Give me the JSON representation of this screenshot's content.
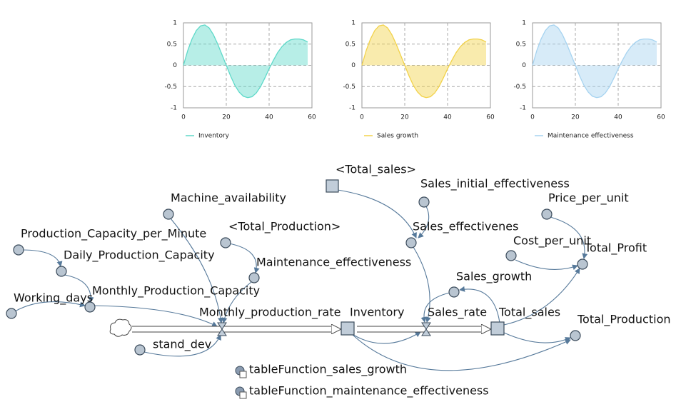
{
  "chart_data": [
    {
      "type": "area",
      "x": [
        0,
        2,
        4,
        6,
        8,
        10,
        12,
        14,
        16,
        18,
        20,
        22,
        24,
        26,
        28,
        30,
        32,
        34,
        36,
        38,
        40,
        42,
        44,
        46,
        48,
        50,
        52,
        54,
        56,
        58
      ],
      "series": [
        {
          "name": "Inventory",
          "color": "#5fd9c9",
          "values": [
            0,
            0.35,
            0.62,
            0.82,
            0.93,
            0.95,
            0.88,
            0.72,
            0.5,
            0.25,
            0,
            -0.25,
            -0.47,
            -0.63,
            -0.73,
            -0.76,
            -0.74,
            -0.65,
            -0.5,
            -0.3,
            -0.08,
            0.12,
            0.3,
            0.44,
            0.54,
            0.6,
            0.62,
            0.62,
            0.6,
            0.55
          ]
        }
      ],
      "xlim": [
        0,
        60
      ],
      "ylim": [
        -1,
        1
      ],
      "xticks": [
        0,
        20,
        40,
        60
      ],
      "yticks": [
        -1,
        -0.5,
        0,
        0.5,
        1
      ],
      "grid": true,
      "legend": "bottom"
    },
    {
      "type": "area",
      "x": [
        0,
        2,
        4,
        6,
        8,
        10,
        12,
        14,
        16,
        18,
        20,
        22,
        24,
        26,
        28,
        30,
        32,
        34,
        36,
        38,
        40,
        42,
        44,
        46,
        48,
        50,
        52,
        54,
        56,
        58
      ],
      "series": [
        {
          "name": "Sales growth",
          "color": "#f2d24a",
          "values": [
            0,
            0.35,
            0.62,
            0.82,
            0.93,
            0.95,
            0.88,
            0.72,
            0.5,
            0.25,
            0,
            -0.25,
            -0.47,
            -0.63,
            -0.73,
            -0.76,
            -0.74,
            -0.65,
            -0.5,
            -0.3,
            -0.08,
            0.12,
            0.3,
            0.44,
            0.54,
            0.6,
            0.62,
            0.62,
            0.6,
            0.55
          ]
        }
      ],
      "xlim": [
        0,
        60
      ],
      "ylim": [
        -1,
        1
      ],
      "xticks": [
        0,
        20,
        40,
        60
      ],
      "yticks": [
        -1,
        -0.5,
        0,
        0.5,
        1
      ],
      "grid": true,
      "legend": "bottom"
    },
    {
      "type": "area",
      "x": [
        0,
        2,
        4,
        6,
        8,
        10,
        12,
        14,
        16,
        18,
        20,
        22,
        24,
        26,
        28,
        30,
        32,
        34,
        36,
        38,
        40,
        42,
        44,
        46,
        48,
        50,
        52,
        54,
        56,
        58
      ],
      "series": [
        {
          "name": "Maintenance effectiveness",
          "color": "#a6d3f0",
          "values": [
            0,
            0.35,
            0.62,
            0.82,
            0.93,
            0.95,
            0.88,
            0.72,
            0.5,
            0.25,
            0,
            -0.25,
            -0.47,
            -0.63,
            -0.73,
            -0.76,
            -0.74,
            -0.65,
            -0.5,
            -0.3,
            -0.08,
            0.12,
            0.3,
            0.44,
            0.54,
            0.6,
            0.62,
            0.62,
            0.6,
            0.55
          ]
        }
      ],
      "xlim": [
        0,
        60
      ],
      "ylim": [
        -1,
        1
      ],
      "xticks": [
        0,
        20,
        40,
        60
      ],
      "yticks": [
        -1,
        -0.5,
        0,
        0.5,
        1
      ],
      "grid": true,
      "legend": "bottom"
    }
  ],
  "nodes": [
    {
      "label": "<Total_sales>"
    },
    {
      "label": "Sales_initial_effectiveness"
    },
    {
      "label": "Machine_availability"
    },
    {
      "label": "Price_per_unit"
    },
    {
      "label": "<Total_Production>"
    },
    {
      "label": "Sales_effectivenes"
    },
    {
      "label": "Production_Capacity_per_Minute"
    },
    {
      "label": "Cost_per_unit"
    },
    {
      "label": "Total_Profit"
    },
    {
      "label": "Daily_Production_Capacity"
    },
    {
      "label": "Maintenance_effectiveness"
    },
    {
      "label": "Sales_growth"
    },
    {
      "label": "Working_days"
    },
    {
      "label": "Monthly_Production_Capacity"
    },
    {
      "label": "Monthly_production_rate"
    },
    {
      "label": "Inventory"
    },
    {
      "label": "Sales_rate"
    },
    {
      "label": "Total_sales"
    },
    {
      "label": "Total_Production"
    },
    {
      "label": "stand_dev"
    },
    {
      "label": "tableFunction_sales_growth"
    },
    {
      "label": "tableFunction_maintenance_effectiveness"
    }
  ]
}
